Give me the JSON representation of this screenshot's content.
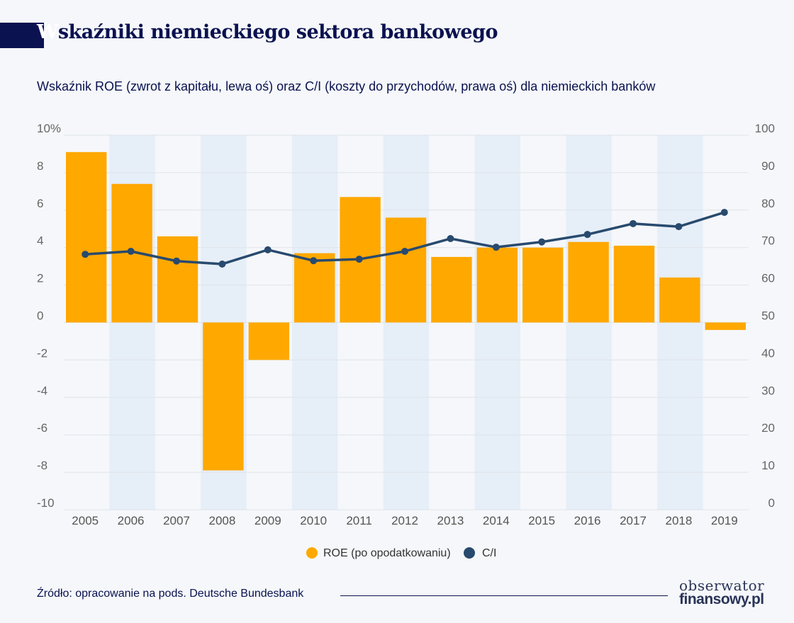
{
  "title": {
    "first_letter": "W",
    "rest": "skaźniki niemieckiego sektora bankowego"
  },
  "subtitle": "Wskaźnik ROE (zwrot z kapitału, lewa oś) oraz C/I (koszty do przychodów, prawa oś) dla niemieckich banków",
  "source": "Źródło: opracowanie na pods. Deutsche Bundesbank",
  "logo": {
    "line1": "obserwator",
    "line2": "finansowy.pl"
  },
  "colors": {
    "roe": "#ffa800",
    "ci": "#284a6e",
    "band": "#e6eef8",
    "title": "#0a1250"
  },
  "chart_data": {
    "type": "bar+line",
    "categories": [
      "2005",
      "2006",
      "2007",
      "2008",
      "2009",
      "2010",
      "2011",
      "2012",
      "2013",
      "2014",
      "2015",
      "2016",
      "2017",
      "2018",
      "2019"
    ],
    "series": [
      {
        "name": "ROE (po opodatkowaniu)",
        "type": "bar",
        "axis": "left",
        "values": [
          9.1,
          7.4,
          4.6,
          -7.9,
          -2.0,
          3.7,
          6.7,
          5.6,
          3.5,
          4.0,
          4.0,
          4.3,
          4.1,
          2.4,
          -0.4
        ]
      },
      {
        "name": "C/I",
        "type": "line",
        "axis": "right",
        "values": [
          68.2,
          69.0,
          66.4,
          65.6,
          69.4,
          66.5,
          66.9,
          69.0,
          72.4,
          70.1,
          71.5,
          73.5,
          76.4,
          75.6,
          79.4
        ]
      }
    ],
    "left_axis": {
      "range": [
        -10,
        10
      ],
      "ticks": [
        "10%",
        "8",
        "6",
        "4",
        "2",
        "0",
        "-2",
        "-4",
        "-6",
        "-8",
        "-10"
      ]
    },
    "right_axis": {
      "range": [
        0,
        100
      ],
      "ticks": [
        "100",
        "90",
        "80",
        "70",
        "60",
        "50",
        "40",
        "30",
        "20",
        "10",
        "0"
      ]
    },
    "grid": true,
    "legend": "bottom"
  }
}
